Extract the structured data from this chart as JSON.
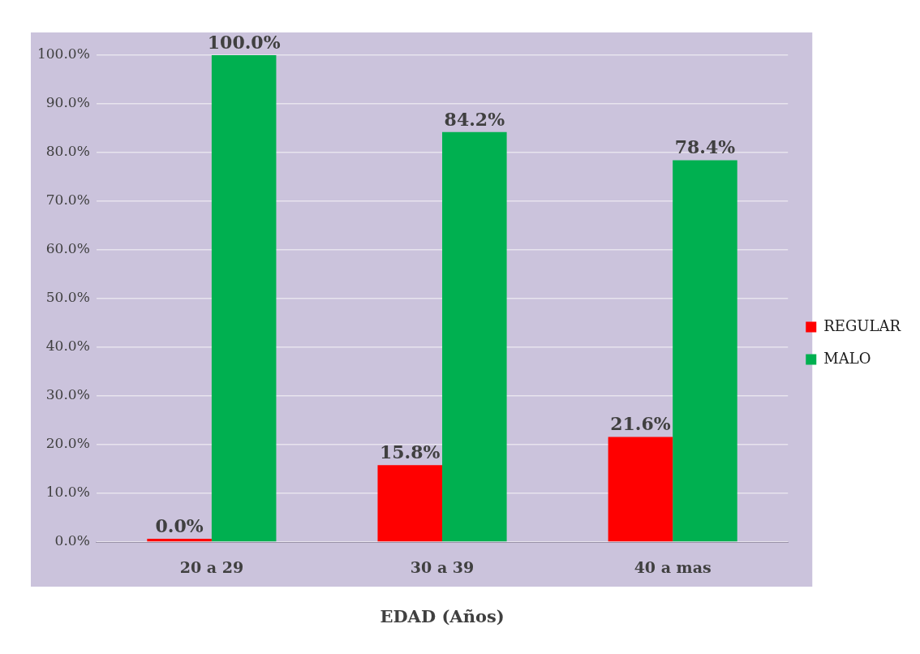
{
  "chart_data": {
    "type": "bar",
    "xlabel": "EDAD (Años)",
    "categories": [
      "20 a 29",
      "30 a 39",
      "40 a mas"
    ],
    "series": [
      {
        "name": "REGULAR",
        "color": "#ff0000",
        "values": [
          0,
          15.8,
          21.6
        ],
        "value_labels": [
          "0.0%",
          "15.8%",
          "21.6%"
        ]
      },
      {
        "name": "MALO",
        "color": "#00b050",
        "values": [
          100,
          84.2,
          78.4
        ],
        "value_labels": [
          "100.0%",
          "84.2%",
          "78.4%"
        ]
      }
    ],
    "ylim": [
      0,
      100
    ],
    "yticks": [
      {
        "value": 0,
        "label": "0.0%"
      },
      {
        "value": 10,
        "label": "10.0%"
      },
      {
        "value": 20,
        "label": "20.0%"
      },
      {
        "value": 30,
        "label": "30.0%"
      },
      {
        "value": 40,
        "label": "40.0%"
      },
      {
        "value": 50,
        "label": "50.0%"
      },
      {
        "value": 60,
        "label": "60.0%"
      },
      {
        "value": 70,
        "label": "70.0%"
      },
      {
        "value": 80,
        "label": "80.0%"
      },
      {
        "value": 90,
        "label": "90.0%"
      },
      {
        "value": 100,
        "label": "100.0%"
      }
    ],
    "grid": "y",
    "legend": "right"
  }
}
